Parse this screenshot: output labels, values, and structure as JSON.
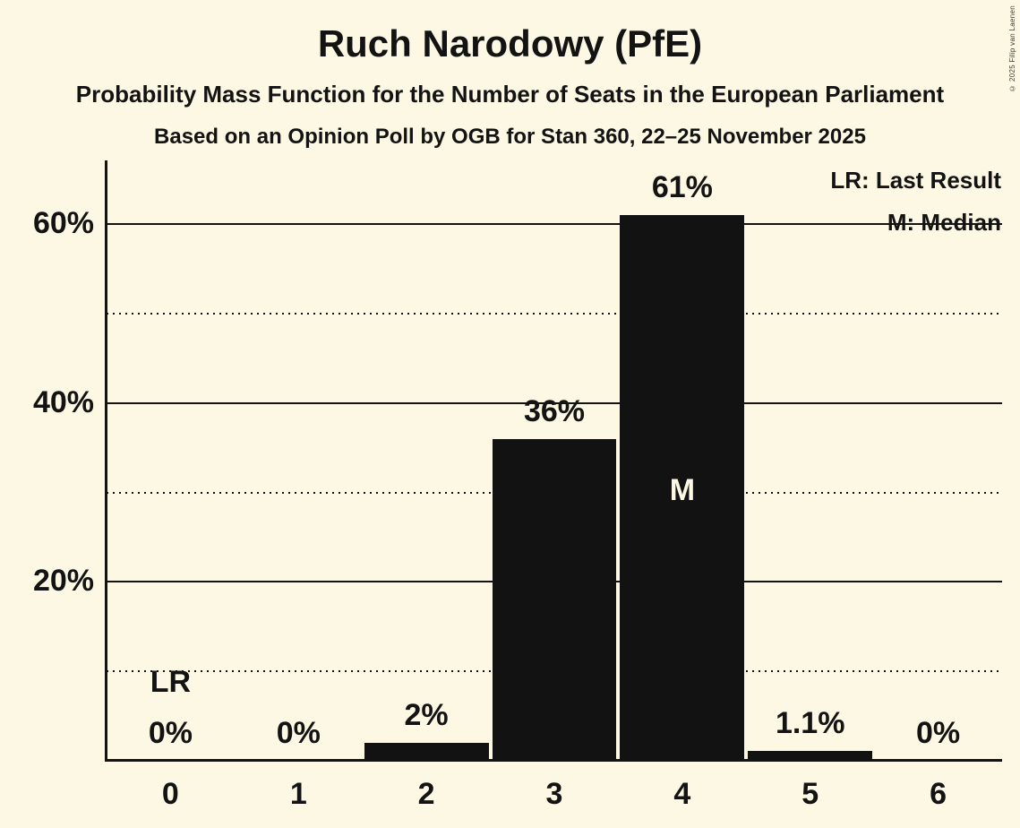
{
  "page": {
    "background": "#FDF8E3",
    "ink": "#131313",
    "bar_color": "#121212"
  },
  "header": {
    "title": "Ruch Narodowy (PfE)",
    "subtitle": "Probability Mass Function for the Number of Seats in the European Parliament",
    "poll_line": "Based on an Opinion Poll by OGB for Stan 360, 22–25 November 2025"
  },
  "copyright": "© 2025 Filip van Laenen",
  "legend": {
    "lr": "LR: Last Result",
    "m": "M: Median"
  },
  "chart_data": {
    "type": "bar",
    "title": "Ruch Narodowy (PfE)",
    "categories": [
      "0",
      "1",
      "2",
      "3",
      "4",
      "5",
      "6"
    ],
    "values": [
      0,
      0,
      2,
      36,
      61,
      1.1,
      0
    ],
    "bar_labels": [
      "0%",
      "0%",
      "2%",
      "36%",
      "61%",
      "1.1%",
      "0%"
    ],
    "y_ticks": [
      {
        "pct": 20,
        "label": "20%"
      },
      {
        "pct": 40,
        "label": "40%"
      },
      {
        "pct": 60,
        "label": "60%"
      }
    ],
    "gridlines_solid_pct": [
      20,
      40,
      60
    ],
    "gridlines_dotted_pct": [
      10,
      30,
      50
    ],
    "ylim": [
      0,
      67
    ],
    "grid": "horizontal",
    "legend_position": "top-right",
    "annotations": {
      "lr_text": "LR",
      "m_text": "M",
      "last_result_seats": 0,
      "median_seats": 4
    }
  }
}
